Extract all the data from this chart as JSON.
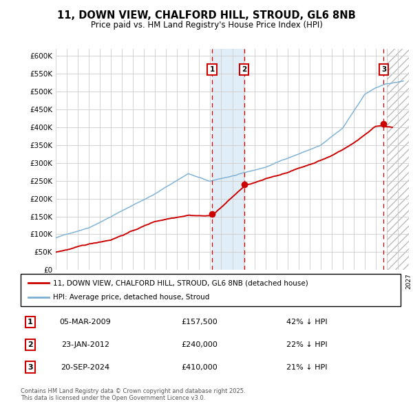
{
  "title": "11, DOWN VIEW, CHALFORD HILL, STROUD, GL6 8NB",
  "subtitle": "Price paid vs. HM Land Registry's House Price Index (HPI)",
  "ylim": [
    0,
    620000
  ],
  "xlim_start": 1995.0,
  "xlim_end": 2027.0,
  "legend_property": "11, DOWN VIEW, CHALFORD HILL, STROUD, GL6 8NB (detached house)",
  "legend_hpi": "HPI: Average price, detached house, Stroud",
  "sale1_date": "05-MAR-2009",
  "sale1_price": 157500,
  "sale1_pct": "42% ↓ HPI",
  "sale2_date": "23-JAN-2012",
  "sale2_price": 240000,
  "sale2_pct": "22% ↓ HPI",
  "sale3_date": "20-SEP-2024",
  "sale3_price": 410000,
  "sale3_pct": "21% ↓ HPI",
  "footnote": "Contains HM Land Registry data © Crown copyright and database right 2025.\nThis data is licensed under the Open Government Licence v3.0.",
  "property_color": "#cc0000",
  "hpi_color": "#7aafd4",
  "shade_color": "#d6e8f5",
  "background_color": "#ffffff",
  "grid_color": "#cccccc",
  "hatch_region_start": 2025.0,
  "sale1_x": 2009.17,
  "sale2_x": 2012.07,
  "sale3_x": 2024.72
}
